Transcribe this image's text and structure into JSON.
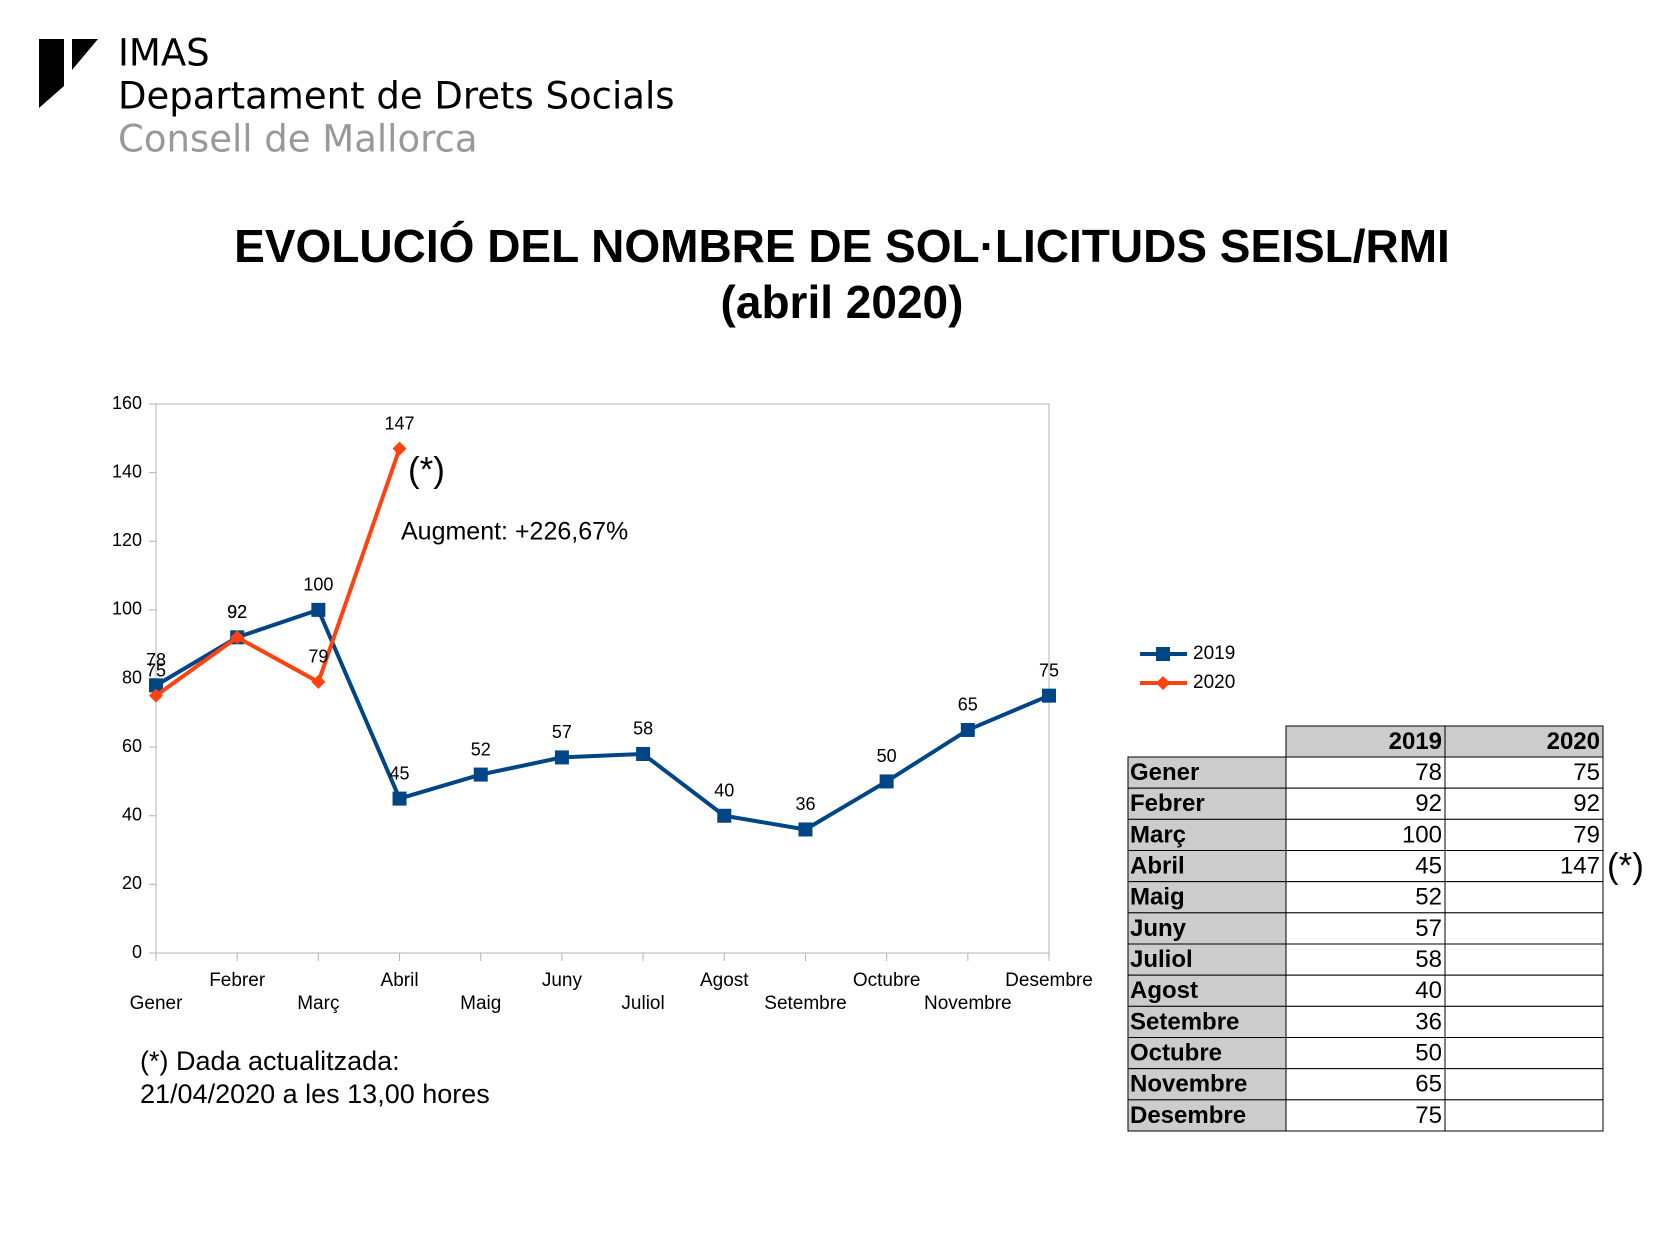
{
  "header": {
    "org": "IMAS",
    "department": "Departament de Drets Socials",
    "council": "Consell de Mallorca"
  },
  "chart_data": {
    "type": "line",
    "title": [
      "EVOLUCIÓ DEL NOMBRE DE SOL·LICITUDS SEISL/RMI",
      "(abril 2020)"
    ],
    "categories": [
      "Gener",
      "Febrer",
      "Març",
      "Abril",
      "Maig",
      "Juny",
      "Juliol",
      "Agost",
      "Setembre",
      "Octubre",
      "Novembre",
      "Desembre"
    ],
    "series": [
      {
        "name": "2019",
        "color": "#004586",
        "marker": "square",
        "values": [
          78,
          92,
          100,
          45,
          52,
          57,
          58,
          40,
          36,
          50,
          65,
          75
        ]
      },
      {
        "name": "2020",
        "color": "#ff420e",
        "marker": "diamond",
        "values": [
          75,
          92,
          79,
          147,
          null,
          null,
          null,
          null,
          null,
          null,
          null,
          null
        ]
      }
    ],
    "ylim": [
      0,
      160
    ],
    "yticks": [
      0,
      20,
      40,
      60,
      80,
      100,
      120,
      140,
      160
    ],
    "grid": false,
    "annotations": [
      "(*)",
      "Augment: +226,67%"
    ],
    "legend": "right"
  },
  "table": {
    "note": "(*)"
  },
  "footnote": [
    "(*) Dada actualitzada:",
    "21/04/2020 a les 13,00 hores"
  ]
}
